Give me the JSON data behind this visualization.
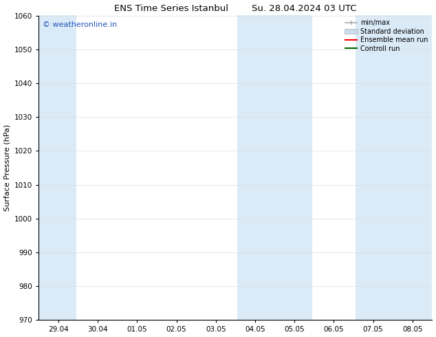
{
  "title_left": "ENS Time Series Istanbul",
  "title_right": "Su. 28.04.2024 03 UTC",
  "ylabel": "Surface Pressure (hPa)",
  "ylim": [
    970,
    1060
  ],
  "yticks": [
    970,
    980,
    990,
    1000,
    1010,
    1020,
    1030,
    1040,
    1050,
    1060
  ],
  "x_labels": [
    "29.04",
    "30.04",
    "01.05",
    "02.05",
    "03.05",
    "04.05",
    "05.05",
    "06.05",
    "07.05",
    "08.05"
  ],
  "x_positions": [
    0,
    1,
    2,
    3,
    4,
    5,
    6,
    7,
    8,
    9
  ],
  "xlim": [
    -0.5,
    9.5
  ],
  "background_color": "#ffffff",
  "plot_bg_color": "#ffffff",
  "shaded_color": "#daeaf7",
  "shaded_regions": [
    {
      "x_start": -0.5,
      "x_end": 0.45
    },
    {
      "x_start": 4.55,
      "x_end": 6.45
    },
    {
      "x_start": 7.55,
      "x_end": 9.5
    }
  ],
  "legend_items": [
    {
      "label": "min/max",
      "type": "errorbar",
      "color": "#aaaaaa"
    },
    {
      "label": "Standard deviation",
      "type": "patch",
      "color": "#ccdded"
    },
    {
      "label": "Ensemble mean run",
      "type": "line",
      "color": "#ff0000"
    },
    {
      "label": "Controll run",
      "type": "line",
      "color": "#006600"
    }
  ],
  "watermark_text": "© weatheronline.in",
  "watermark_color": "#2255bb",
  "title_fontsize": 9.5,
  "tick_fontsize": 7.5,
  "ylabel_fontsize": 8,
  "legend_fontsize": 7,
  "watermark_fontsize": 8
}
